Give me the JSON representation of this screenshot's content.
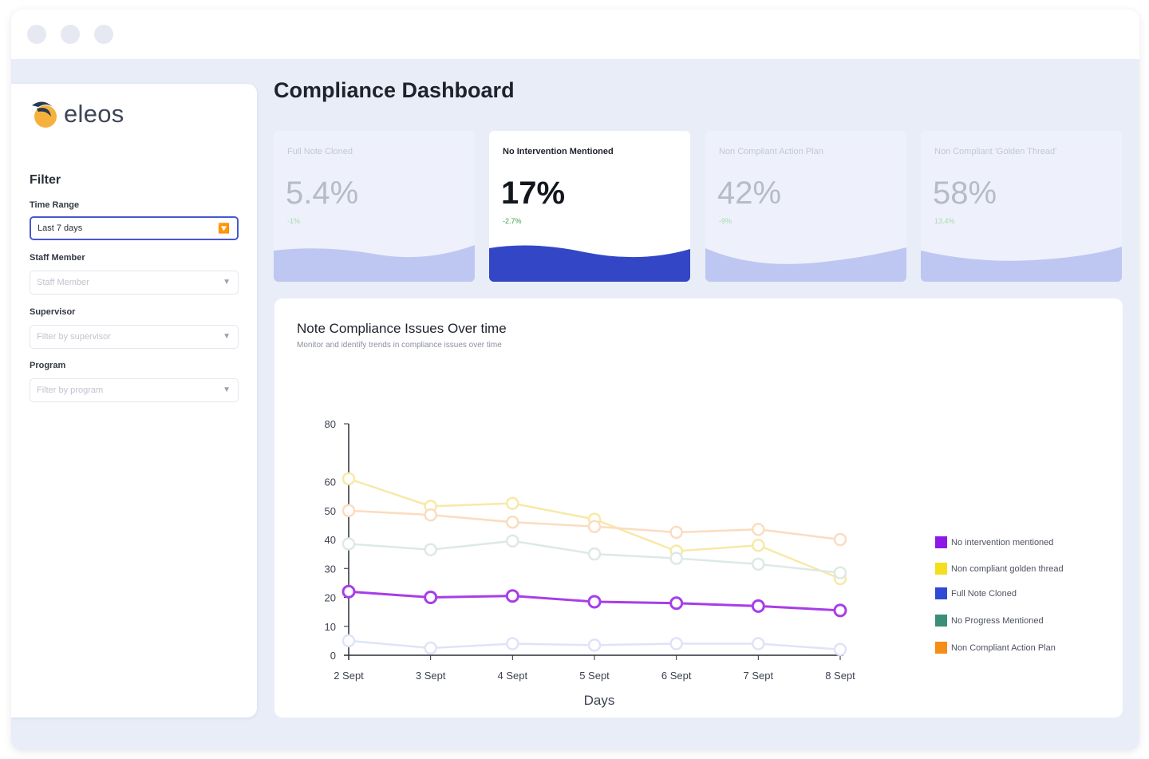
{
  "app": {
    "logo_text": "eleos",
    "page_title": "Compliance Dashboard"
  },
  "filter": {
    "title": "Filter",
    "time_range": {
      "label": "Time Range",
      "value": "Last 7 days"
    },
    "staff_member": {
      "label": "Staff Member",
      "placeholder": "Staff Member"
    },
    "supervisor": {
      "label": "Supervisor",
      "placeholder": "Filter by supervisor"
    },
    "program": {
      "label": "Program",
      "placeholder": "Filter by program"
    }
  },
  "metric_cards": [
    {
      "label": "Full Note Cloned",
      "value": "5.4%",
      "delta": "-1%",
      "selected": false
    },
    {
      "label": "No Intervention Mentioned",
      "value": "17%",
      "delta": "-2.7%",
      "selected": true
    },
    {
      "label": "Non Compliant Action Plan",
      "value": "42%",
      "delta": "-9%",
      "selected": false
    },
    {
      "label": "Non Compliant 'Golden Thread'",
      "value": "58%",
      "delta": "13.4%",
      "selected": false
    }
  ],
  "chart_panel": {
    "title": "Note Compliance Issues Over time",
    "subtitle": "Monitor and identify trends in compliance issues over time"
  },
  "chart_data": {
    "type": "line",
    "xlabel": "Days",
    "ylabel": "",
    "x": [
      "2 Sept",
      "3 Sept",
      "4 Sept",
      "5 Sept",
      "6 Sept",
      "7 Sept",
      "8 Sept"
    ],
    "ylim": [
      0,
      80
    ],
    "yticks": [
      0,
      10,
      20,
      30,
      40,
      50,
      60,
      80
    ],
    "grid": false,
    "legend_position": "right",
    "series": [
      {
        "name": "No intervention mentioned",
        "color": "#a63ee8",
        "values": [
          22,
          20,
          20.5,
          18.5,
          18,
          17,
          15.5
        ],
        "emphasis": true
      },
      {
        "name": "Non compliant golden thread",
        "color": "#f7e9a6",
        "values": [
          61,
          51.5,
          52.5,
          47,
          36,
          38,
          26.5
        ],
        "emphasis": false
      },
      {
        "name": "Full Note Cloned",
        "color": "#dfe3f8",
        "values": [
          5,
          2.5,
          4,
          3.5,
          4,
          4,
          2
        ],
        "emphasis": false
      },
      {
        "name": "No Progress Mentioned",
        "color": "#dde9e5",
        "values": [
          38.5,
          36.5,
          39.5,
          35,
          33.5,
          31.5,
          28.5
        ],
        "emphasis": false
      },
      {
        "name": "Non Compliant Action Plan",
        "color": "#fbdcc0",
        "values": [
          50,
          48.5,
          46,
          44.5,
          42.5,
          43.5,
          40
        ],
        "emphasis": false
      }
    ],
    "legend_colors": [
      "#8f18e8",
      "#f4df1e",
      "#3049d6",
      "#3b8f77",
      "#f58e16"
    ]
  },
  "colors": {
    "accent": "#4957d0",
    "wave_selected": "#3347c6",
    "wave_default": "#b5c0ef",
    "background": "#e9edf8"
  }
}
